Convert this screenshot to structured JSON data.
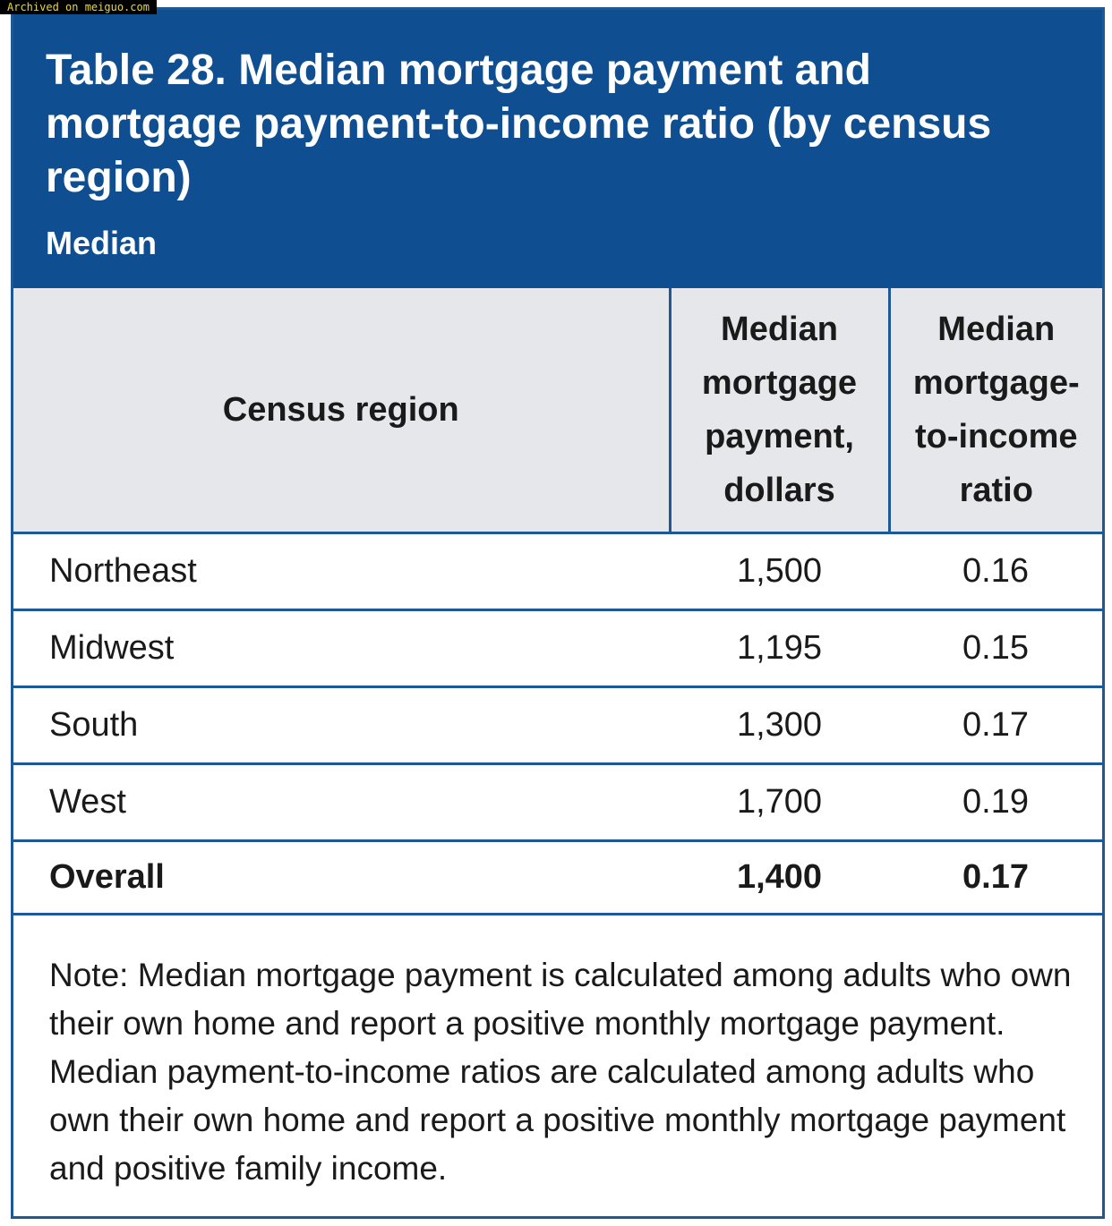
{
  "watermark": "Archived on meiguo.com",
  "header": {
    "title": "Table 28. Median mortgage payment and mortgage payment-to-income ratio (by census region)",
    "subtitle": "Median"
  },
  "table": {
    "columns": [
      "Census region",
      "Median mortgage payment, dollars",
      "Median mortgage-to-income ratio"
    ],
    "rows": [
      [
        "Northeast",
        "1,500",
        "0.16"
      ],
      [
        "Midwest",
        "1,195",
        "0.15"
      ],
      [
        "South",
        "1,300",
        "0.17"
      ],
      [
        "West",
        "1,700",
        "0.19"
      ],
      [
        "Overall",
        "1,400",
        "0.17"
      ]
    ]
  },
  "note": "Note: Median mortgage payment is calculated among adults who own their own home and report a positive monthly mortgage payment. Median payment-to-income ratios are calculated among adults who own their own home and report a positive monthly mortgage payment and positive family income."
}
